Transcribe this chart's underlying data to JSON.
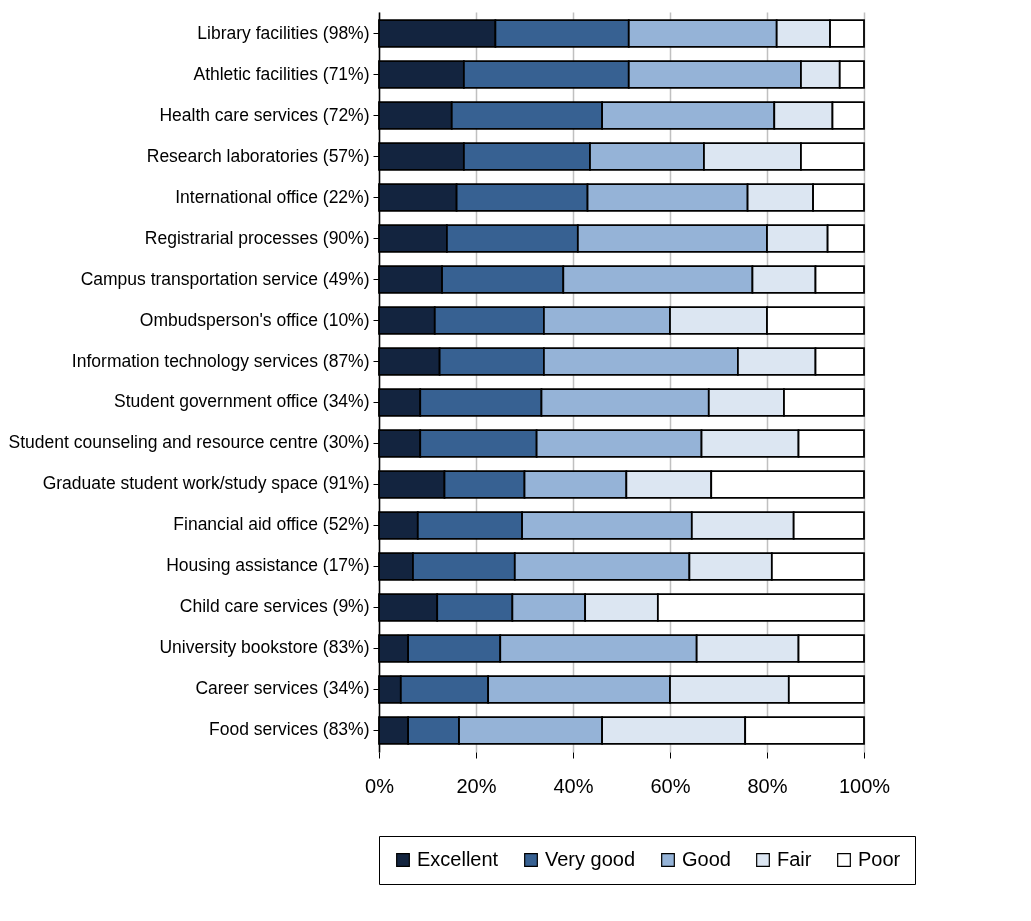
{
  "chart_data": {
    "type": "bar",
    "orientation": "horizontal",
    "stacked": true,
    "categories": [
      "Library facilities (98%)",
      "Athletic facilities (71%)",
      "Health care services (72%)",
      "Research laboratories (57%)",
      "International office (22%)",
      "Registrarial processes (90%)",
      "Campus transportation service (49%)",
      "Ombudsperson's office (10%)",
      "Information technology services (87%)",
      "Student government office (34%)",
      "Student counseling and resource centre (30%)",
      "Graduate student work/study space (91%)",
      "Financial aid office (52%)",
      "Housing assistance (17%)",
      "Child care services (9%)",
      "University bookstore (83%)",
      "Career services (34%)",
      "Food services (83%)"
    ],
    "series": [
      {
        "name": "Excellent",
        "color": "#13243f",
        "values": [
          24,
          17.5,
          15,
          17.5,
          16,
          14,
          13,
          11.5,
          12.5,
          8.5,
          8.5,
          13.5,
          8,
          7,
          12,
          6,
          4.5,
          6
        ]
      },
      {
        "name": "Very good",
        "color": "#376192",
        "values": [
          27.5,
          34,
          31,
          26,
          27,
          27,
          25,
          22.5,
          21.5,
          25,
          24,
          16.5,
          21.5,
          21,
          15.5,
          19,
          18,
          10.5
        ]
      },
      {
        "name": "Good",
        "color": "#95b3d7",
        "values": [
          30.5,
          35.5,
          35.5,
          23.5,
          33,
          39,
          39,
          26,
          40,
          34.5,
          34,
          21,
          35,
          36,
          15,
          40.5,
          37.5,
          29.5
        ]
      },
      {
        "name": "Fair",
        "color": "#dce6f2",
        "values": [
          11,
          8,
          12,
          20,
          13.5,
          12.5,
          13,
          20,
          16,
          15.5,
          20,
          17.5,
          21,
          17,
          15,
          21,
          24.5,
          29.5
        ]
      },
      {
        "name": "Poor",
        "color": "#ffffff",
        "values": [
          7,
          5,
          6.5,
          13,
          10.5,
          7.5,
          10,
          20,
          10,
          16.5,
          13.5,
          31.5,
          14.5,
          19,
          42.5,
          13.5,
          15.5,
          24.5
        ]
      }
    ],
    "xlim": [
      0,
      100
    ],
    "xticks": [
      {
        "value": 0,
        "label": "0%"
      },
      {
        "value": 20,
        "label": "20%"
      },
      {
        "value": 40,
        "label": "40%"
      },
      {
        "value": 60,
        "label": "60%"
      },
      {
        "value": 80,
        "label": "80%"
      },
      {
        "value": 100,
        "label": "100%"
      }
    ],
    "grid": "x",
    "legend": "bottom"
  }
}
